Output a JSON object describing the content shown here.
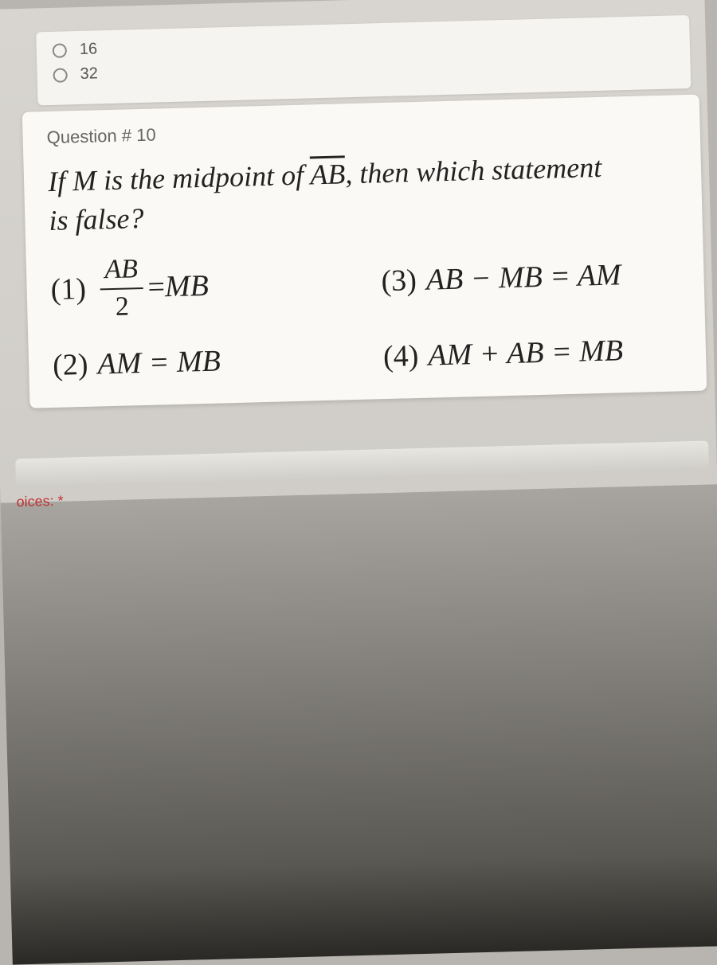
{
  "prev_options": {
    "option_a": "16",
    "option_b": "32"
  },
  "question": {
    "label": "Question # 10",
    "stem_part1": "If M is the midpoint of",
    "stem_segment": "AB",
    "stem_part2": ", then which statement",
    "stem_line2": "is false?",
    "answers": {
      "a1_num": "(1)",
      "a1_frac_num": "AB",
      "a1_frac_den": "2",
      "a1_eq": " = ",
      "a1_rhs": "MB",
      "a2_num": "(2)",
      "a2_text": "AM = MB",
      "a3_num": "(3)",
      "a3_text": "AB − MB = AM",
      "a4_num": "(4)",
      "a4_text": "AM + AB = MB"
    }
  },
  "bottom_label": "oices: *"
}
